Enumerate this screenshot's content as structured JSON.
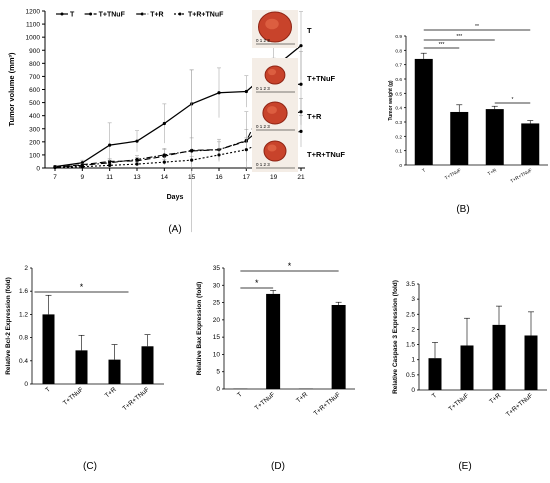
{
  "colors": {
    "ink": "#000000",
    "bar": "#000000",
    "tumor": "#c8432b",
    "tumor_dark": "#8f2414",
    "photo_bg": "#f4ede6"
  },
  "panels": {
    "A": {
      "label": "(A)"
    },
    "B": {
      "label": "(B)"
    },
    "C": {
      "label": "(C)"
    },
    "D": {
      "label": "(D)"
    },
    "E": {
      "label": "(E)"
    }
  },
  "photos": [
    {
      "label": "T",
      "icon": "tumor-photo-icon",
      "ruler": "0 1 2 3"
    },
    {
      "label": "T+TNuF",
      "icon": "tumor-photo-icon",
      "ruler": "0 1 2 3"
    },
    {
      "label": "T+R",
      "icon": "tumor-photo-icon",
      "ruler": "0 1 2 3"
    },
    {
      "label": "T+R+TNuF",
      "icon": "tumor-photo-icon",
      "ruler": "0 1 2 3"
    }
  ],
  "chart_data": [
    {
      "id": "A",
      "type": "line",
      "title": "",
      "xlabel": "Days",
      "ylabel": "Tumor volume (mm³)",
      "categories": [
        "7",
        "9",
        "11",
        "13",
        "14",
        "15",
        "16",
        "17",
        "19",
        "21"
      ],
      "ylim": [
        0,
        1200
      ],
      "yticks": [
        0,
        100,
        200,
        300,
        400,
        500,
        600,
        700,
        800,
        900,
        1000,
        1100,
        1200
      ],
      "legend_position": "top",
      "series": [
        {
          "name": "T",
          "style": "solid",
          "values": [
            10,
            40,
            175,
            205,
            340,
            490,
            575,
            585,
            765,
            935
          ],
          "errors": [
            10,
            20,
            170,
            80,
            150,
            260,
            190,
            120,
            210,
            260
          ]
        },
        {
          "name": "T+TNuF",
          "style": "longdash",
          "values": [
            5,
            25,
            50,
            55,
            90,
            135,
            140,
            205,
            640,
            640
          ],
          "errors": [
            5,
            10,
            20,
            25,
            50,
            95,
            80,
            90,
            200,
            250
          ]
        },
        {
          "name": "T+R",
          "style": "dashdot",
          "values": [
            5,
            20,
            40,
            65,
            100,
            130,
            140,
            210,
            380,
            430
          ],
          "errors": [
            5,
            10,
            20,
            30,
            50,
            620,
            60,
            220,
            60,
            100
          ]
        },
        {
          "name": "T+R+TNuF",
          "style": "dotted",
          "values": [
            5,
            10,
            20,
            30,
            45,
            60,
            100,
            140,
            240,
            280
          ],
          "errors": [
            5,
            5,
            10,
            15,
            20,
            30,
            50,
            90,
            70,
            120
          ]
        }
      ]
    },
    {
      "id": "B",
      "type": "bar",
      "title": "",
      "xlabel": "",
      "ylabel": "Tumor weight (g)",
      "categories": [
        "T",
        "T+TNuF",
        "T+R",
        "T+R+TNuF"
      ],
      "values": [
        0.74,
        0.37,
        0.39,
        0.29
      ],
      "errors": [
        0.04,
        0.05,
        0.02,
        0.02
      ],
      "ylim": [
        0,
        0.9
      ],
      "yticks": [
        "0",
        "0.1",
        "0.2",
        "0.3",
        "0.4",
        "0.5",
        "0.6",
        "0.7",
        "0.8",
        "0.9"
      ],
      "significance": [
        {
          "from": 0,
          "to": 1,
          "label": "***"
        },
        {
          "from": 0,
          "to": 2,
          "label": "***"
        },
        {
          "from": 0,
          "to": 3,
          "label": "**"
        },
        {
          "from": 2,
          "to": 3,
          "label": "*"
        }
      ]
    },
    {
      "id": "C",
      "type": "bar",
      "title": "",
      "xlabel": "",
      "ylabel": "Relative  Bcl-2 Expression (fold)",
      "categories": [
        "T",
        "T+TNuF",
        "T+R",
        "T+R+TNuF"
      ],
      "values": [
        1.2,
        0.58,
        0.42,
        0.65
      ],
      "errors": [
        0.33,
        0.26,
        0.26,
        0.2
      ],
      "ylim": [
        0,
        2
      ],
      "yticks": [
        "0",
        "0.4",
        "0.8",
        "1.2",
        "1.6",
        "2"
      ],
      "significance": [
        {
          "from": 0,
          "to": 2,
          "label": "*"
        }
      ]
    },
    {
      "id": "D",
      "type": "bar",
      "title": "",
      "xlabel": "",
      "ylabel": "Relative Bax Expression (fold)",
      "categories": [
        "T",
        "T+TNuF",
        "T+R",
        "T+R+TNuF"
      ],
      "values": [
        0.1,
        27.5,
        0.1,
        24.3
      ],
      "errors": [
        0,
        1.0,
        0,
        0.8
      ],
      "ylim": [
        0,
        35
      ],
      "yticks": [
        "0",
        "5",
        "10",
        "15",
        "20",
        "25",
        "30",
        "35"
      ],
      "significance": [
        {
          "from": 0,
          "to": 1,
          "label": "*"
        },
        {
          "from": 0,
          "to": 3,
          "label": "*"
        }
      ]
    },
    {
      "id": "E",
      "type": "bar",
      "title": "",
      "xlabel": "",
      "ylabel": "Relative Caspase 3 Expression (fold)",
      "categories": [
        "T",
        "T+TNuF",
        "T+R",
        "T+R+TNuF"
      ],
      "values": [
        1.05,
        1.47,
        2.15,
        1.8
      ],
      "errors": [
        0.52,
        0.9,
        0.62,
        0.78
      ],
      "ylim": [
        0,
        3.5
      ],
      "yticks": [
        "0",
        "0.5",
        "1",
        "1.5",
        "2",
        "2.5",
        "3",
        "3.5"
      ],
      "significance": []
    }
  ]
}
